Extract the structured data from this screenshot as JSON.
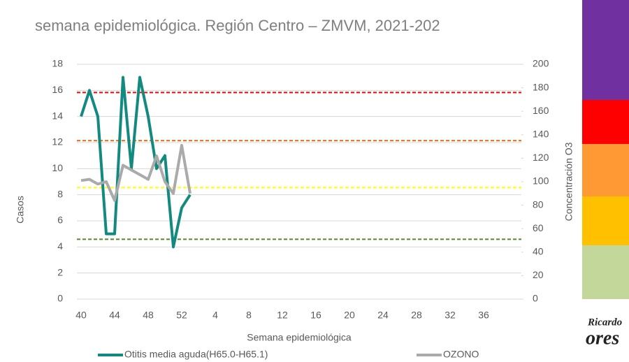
{
  "chart_data": {
    "type": "line",
    "title": "semana epidemiológica. Región Centro – ZMVM, 2021-202",
    "x_label": "Semana epidemiológica",
    "y_label": "Casos",
    "y2_label": "Concentración O3",
    "categories": [
      "40",
      null,
      null,
      null,
      "44",
      null,
      null,
      null,
      "48",
      null,
      null,
      null,
      "52",
      null,
      null,
      null,
      "4",
      null,
      null,
      null,
      "8",
      null,
      null,
      null,
      "12",
      null,
      null,
      null,
      "16",
      null,
      null,
      null,
      "20",
      null,
      null,
      null,
      "24",
      null,
      null,
      null,
      "28",
      null,
      null,
      null,
      "32",
      null,
      null,
      null,
      "36",
      null,
      null,
      null,
      null
    ],
    "series": [
      {
        "name": "Otitis media aguda(H65.0-H65.1)",
        "color": "#138a80",
        "axis": "y",
        "values": [
          14,
          16,
          14,
          5,
          5,
          17,
          10,
          17,
          14,
          10,
          11,
          4,
          7,
          8,
          null,
          null,
          null,
          null,
          null,
          null,
          null,
          null,
          null,
          null,
          null,
          null,
          null,
          null,
          null,
          null,
          null,
          null,
          null,
          null,
          null,
          null,
          null,
          null,
          null,
          null,
          null,
          null,
          null,
          null,
          null,
          null,
          null,
          null,
          null,
          null,
          null,
          null,
          null
        ]
      },
      {
        "name": "OZONO",
        "color": "#aaaaaa",
        "axis": "y2",
        "values": [
          101,
          102,
          98,
          100,
          84,
          114,
          110,
          106,
          102,
          122,
          100,
          90,
          131,
          90,
          null,
          null,
          null,
          null,
          null,
          null,
          null,
          null,
          null,
          null,
          null,
          null,
          null,
          null,
          null,
          null,
          null,
          null,
          null,
          null,
          null,
          null,
          null,
          null,
          null,
          null,
          null,
          null,
          null,
          null,
          null,
          null,
          null,
          null,
          null,
          null,
          null,
          null,
          null
        ]
      }
    ],
    "thresholds": [
      {
        "value": 176,
        "color": "#ff0000"
      },
      {
        "value": 135,
        "color": "#e36c09"
      },
      {
        "value": 95,
        "color": "#ffff00"
      },
      {
        "value": 51,
        "color": "#4e8a2a"
      }
    ],
    "ylim": [
      0,
      18
    ],
    "yticks": [
      0,
      2,
      4,
      6,
      8,
      10,
      12,
      14,
      16,
      18
    ],
    "y2lim": [
      0,
      200
    ],
    "y2ticks": [
      0,
      20,
      40,
      60,
      80,
      100,
      120,
      140,
      160,
      180,
      200
    ],
    "grid": true
  },
  "logo": [
    "Ricardo",
    "ores"
  ]
}
